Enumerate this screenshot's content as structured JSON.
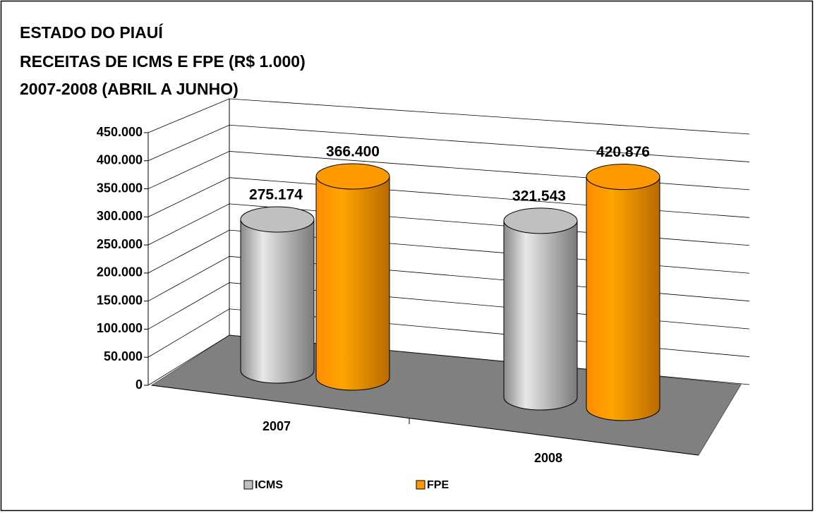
{
  "chart_data": {
    "type": "bar3d",
    "title": [
      "ESTADO DO PIAUÍ",
      "RECEITAS DE ICMS E FPE (R$ 1.000)",
      "2007-2008 (ABRIL A JUNHO)"
    ],
    "categories": [
      "2007",
      "2008"
    ],
    "series": [
      {
        "name": "ICMS",
        "color": "#c0c0c0",
        "values": [
          275174,
          321543
        ],
        "value_labels": [
          "275.174",
          "321.543"
        ]
      },
      {
        "name": "FPE",
        "color": "#ff9900",
        "values": [
          366400,
          420876
        ],
        "value_labels": [
          "366.400",
          "420.876"
        ]
      }
    ],
    "ylim": [
      0,
      450000
    ],
    "yticks": [
      0,
      {
        "value": 50000,
        "label": "50.000"
      },
      {
        "value": 100000,
        "label": "100.000"
      },
      {
        "value": 150000,
        "label": "150.000"
      },
      {
        "value": 200000,
        "label": "200.000"
      },
      {
        "value": 250000,
        "label": "250.000"
      },
      {
        "value": 300000,
        "label": "300.000"
      },
      {
        "value": 350000,
        "label": "350.000"
      },
      {
        "value": 400000,
        "label": "400.000"
      },
      {
        "value": 450000,
        "label": "450.000"
      }
    ],
    "grid": true,
    "legend": "bottom"
  }
}
